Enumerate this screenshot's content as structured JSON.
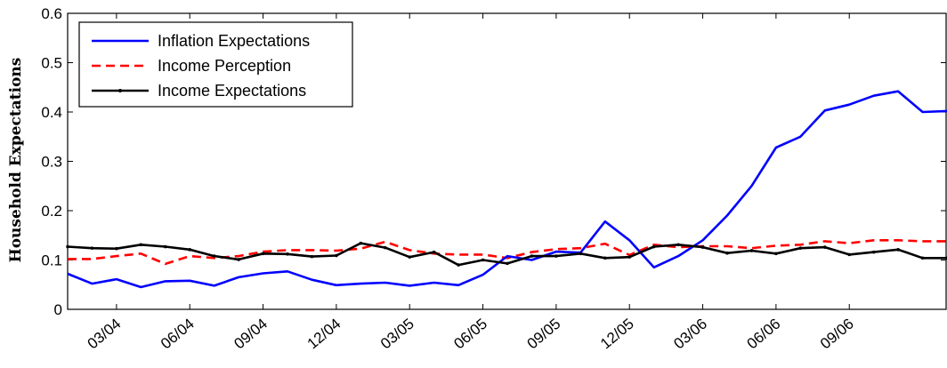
{
  "chart_data": {
    "type": "line",
    "title": "",
    "xlabel": "",
    "ylabel": "Household Expectations",
    "ylim": [
      0,
      0.6
    ],
    "yticks": [
      "0",
      "0.1",
      "0.2",
      "0.3",
      "0.4",
      "0.5",
      "0.6"
    ],
    "xticks": [
      {
        "label": "03/04",
        "x": 3
      },
      {
        "label": "06/04",
        "x": 6
      },
      {
        "label": "09/04",
        "x": 9
      },
      {
        "label": "12/04",
        "x": 12
      },
      {
        "label": "03/05",
        "x": 15
      },
      {
        "label": "06/05",
        "x": 18
      },
      {
        "label": "09/05",
        "x": 21
      },
      {
        "label": "12/05",
        "x": 24
      },
      {
        "label": "03/06",
        "x": 27
      },
      {
        "label": "06/06",
        "x": 30
      },
      {
        "label": "09/06",
        "x": 33
      }
    ],
    "xlim": [
      1,
      37
    ],
    "grid": false,
    "legend_position": "top-left",
    "x": [
      1,
      2,
      3,
      4,
      5,
      6,
      7,
      8,
      9,
      10,
      11,
      12,
      13,
      14,
      15,
      16,
      17,
      18,
      19,
      20,
      21,
      22,
      23,
      24,
      25,
      26,
      27,
      28,
      29,
      30,
      31,
      32,
      33,
      34,
      35,
      36,
      37
    ],
    "series": [
      {
        "name": "Inflation Expectations",
        "color": "#0000ff",
        "style": "solid",
        "values": [
          0.072,
          0.052,
          0.061,
          0.045,
          0.057,
          0.058,
          0.048,
          0.065,
          0.073,
          0.077,
          0.06,
          0.049,
          0.052,
          0.054,
          0.048,
          0.054,
          0.049,
          0.07,
          0.108,
          0.1,
          0.117,
          0.115,
          0.178,
          0.14,
          0.085,
          0.108,
          0.14,
          0.19,
          0.25,
          0.328,
          0.35,
          0.403,
          0.415,
          0.433,
          0.442,
          0.4,
          0.402
        ]
      },
      {
        "name": "Income Perception",
        "color": "#ff0000",
        "style": "dashed",
        "values": [
          0.102,
          0.102,
          0.108,
          0.113,
          0.092,
          0.108,
          0.104,
          0.108,
          0.117,
          0.12,
          0.12,
          0.119,
          0.123,
          0.137,
          0.12,
          0.113,
          0.111,
          0.111,
          0.104,
          0.116,
          0.122,
          0.124,
          0.133,
          0.11,
          0.131,
          0.126,
          0.128,
          0.128,
          0.124,
          0.129,
          0.131,
          0.138,
          0.134,
          0.14,
          0.14,
          0.138,
          0.138
        ]
      },
      {
        "name": "Income Expectations",
        "color": "#000000",
        "style": "solid-dot",
        "values": [
          0.127,
          0.124,
          0.123,
          0.131,
          0.127,
          0.121,
          0.108,
          0.101,
          0.113,
          0.112,
          0.107,
          0.109,
          0.134,
          0.125,
          0.106,
          0.116,
          0.09,
          0.1,
          0.093,
          0.108,
          0.108,
          0.113,
          0.104,
          0.106,
          0.127,
          0.131,
          0.126,
          0.114,
          0.119,
          0.113,
          0.124,
          0.126,
          0.111,
          0.116,
          0.121,
          0.104,
          0.104
        ]
      }
    ]
  }
}
